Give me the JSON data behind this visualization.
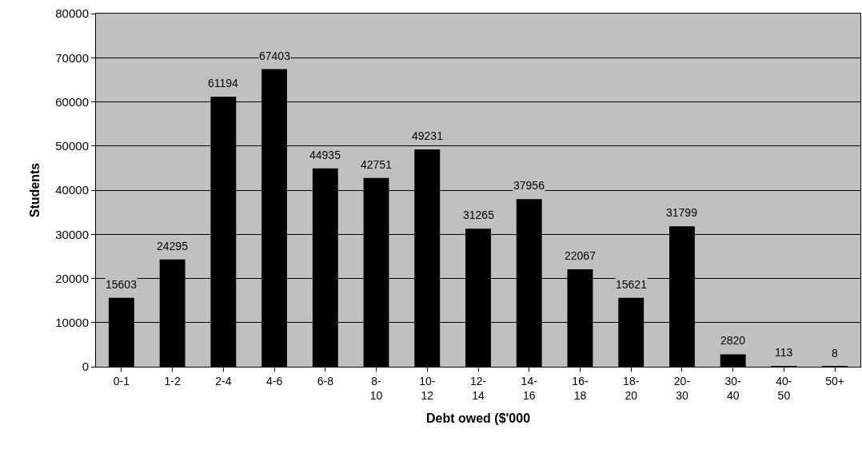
{
  "chart_data": {
    "type": "bar",
    "xlabel": "Debt owed ($'000",
    "ylabel": "Students",
    "categories": [
      "0-1",
      "1-2",
      "2-4",
      "4-6",
      "6-8",
      "8-10",
      "10-12",
      "12-14",
      "14-16",
      "16-18",
      "18-20",
      "20-30",
      "30-40",
      "40-50",
      "50+"
    ],
    "values": [
      15603,
      24295,
      61194,
      67403,
      44935,
      42751,
      49231,
      31265,
      37956,
      22067,
      15621,
      31799,
      2820,
      113,
      8
    ],
    "color": "#000000",
    "ylim": [
      0,
      80000
    ],
    "yticks": [
      0,
      10000,
      20000,
      30000,
      40000,
      50000,
      60000,
      70000,
      80000
    ],
    "grid": "y",
    "data_labels": true,
    "legend": false
  }
}
